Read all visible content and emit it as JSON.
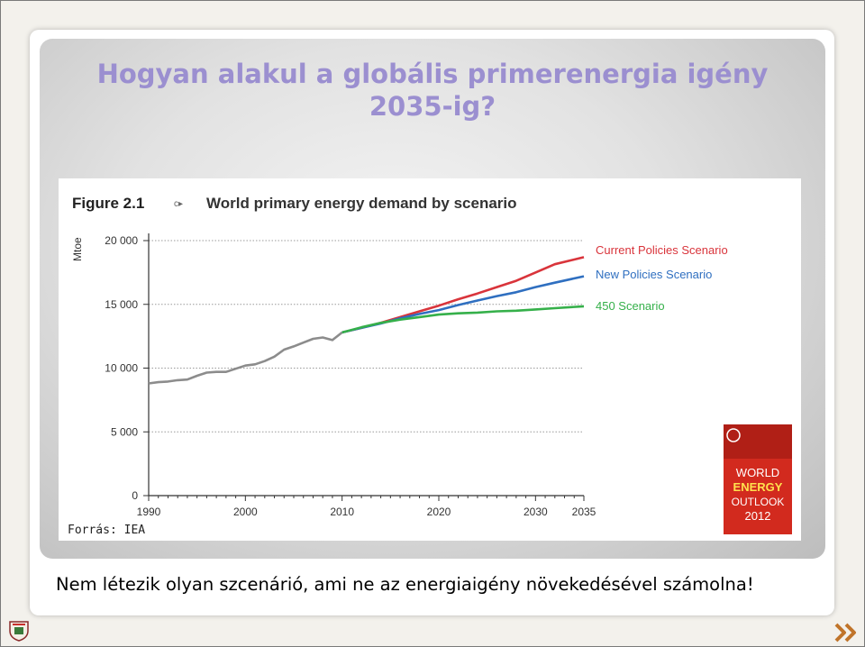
{
  "slide": {
    "title_line1": "Hogyan alakul a globális primerenergia igény",
    "title_line2": "2035-ig?",
    "source": "Forrás: IEA",
    "caption": "Nem létezik olyan szcenárió, ami ne az energiaigény növekedésével számolna!"
  },
  "book_cover": {
    "lines": [
      "WORLD",
      "ENERGY",
      "OUTLOOK",
      "2012"
    ],
    "color": "#d22a1e"
  },
  "icons": {
    "logo": "crest-icon",
    "next": "double-chevron-right-icon"
  },
  "chart_data": {
    "type": "line",
    "figure_label": "Figure 2.1",
    "title": "World primary energy demand by scenario",
    "ylabel": "Mtoe",
    "xlabel": "",
    "ylim": [
      0,
      20000
    ],
    "xlim": [
      1990,
      2035
    ],
    "yticks": [
      0,
      5000,
      10000,
      15000,
      20000
    ],
    "ytick_labels": [
      "0",
      "5 000",
      "10 000",
      "15 000",
      "20 000"
    ],
    "xticks": [
      1990,
      2000,
      2010,
      2020,
      2030,
      2035
    ],
    "grid": "horizontal dotted",
    "legend": "right",
    "series": [
      {
        "name": "",
        "color": "#8c8c8c",
        "x": [
          1990,
          1991,
          1992,
          1993,
          1994,
          1995,
          1996,
          1997,
          1998,
          1999,
          2000,
          2001,
          2002,
          2003,
          2004,
          2005,
          2006,
          2007,
          2008,
          2009,
          2010
        ],
        "values": [
          8800,
          8900,
          8950,
          9050,
          9100,
          9400,
          9650,
          9700,
          9700,
          9950,
          10200,
          10300,
          10550,
          10900,
          11450,
          11700,
          12000,
          12300,
          12400,
          12200,
          12800
        ]
      },
      {
        "name": "Current Policies Scenario",
        "color": "#d9343b",
        "x": [
          2010,
          2012,
          2014,
          2016,
          2018,
          2020,
          2022,
          2024,
          2026,
          2028,
          2030,
          2032,
          2035
        ],
        "values": [
          12800,
          13150,
          13550,
          14000,
          14450,
          14900,
          15400,
          15850,
          16350,
          16850,
          17500,
          18150,
          18700
        ]
      },
      {
        "name": "New Policies Scenario",
        "color": "#2f6fc0",
        "x": [
          2010,
          2012,
          2014,
          2016,
          2018,
          2020,
          2022,
          2024,
          2026,
          2028,
          2030,
          2032,
          2035
        ],
        "values": [
          12800,
          13150,
          13500,
          13900,
          14250,
          14550,
          14950,
          15300,
          15650,
          15950,
          16350,
          16700,
          17200
        ]
      },
      {
        "name": "450 Scenario",
        "color": "#35b04a",
        "x": [
          2010,
          2012,
          2014,
          2016,
          2018,
          2020,
          2022,
          2024,
          2026,
          2028,
          2030,
          2032,
          2035
        ],
        "values": [
          12800,
          13200,
          13550,
          13800,
          14000,
          14200,
          14300,
          14350,
          14450,
          14500,
          14600,
          14700,
          14850
        ]
      }
    ]
  }
}
